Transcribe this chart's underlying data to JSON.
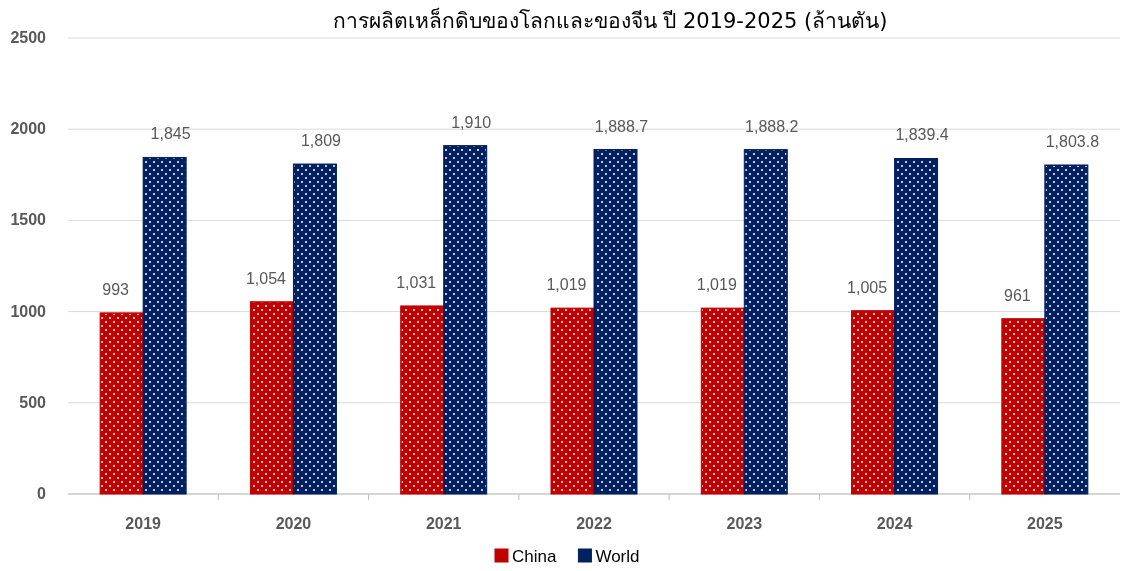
{
  "chart_data": {
    "type": "bar",
    "title": "การผลิตเหล็กดิบของโลกและของจีน ปี 2019-2025 (ล้านตัน)",
    "categories": [
      "2019",
      "2020",
      "2021",
      "2022",
      "2023",
      "2024",
      "2025"
    ],
    "series": [
      {
        "name": "China",
        "color": "#c00000",
        "values": [
          993,
          1054,
          1031,
          1019,
          1019,
          1005,
          961
        ],
        "value_labels": [
          "993",
          "1,054",
          "1,031",
          "1,019",
          "1,019",
          "1,005",
          "961"
        ]
      },
      {
        "name": "World",
        "color": "#002060",
        "values": [
          1845,
          1809,
          1910,
          1888.7,
          1888.2,
          1839.4,
          1803.8
        ],
        "value_labels": [
          "1,845",
          "1,809",
          "1,910",
          "1,888.7",
          "1,888.2",
          "1,839.4",
          "1,803.8"
        ]
      }
    ],
    "ylim": [
      0,
      2500
    ],
    "yticks": [
      0,
      500,
      1000,
      1500,
      2000,
      2500
    ],
    "grid": "y",
    "legend": "bottom"
  }
}
